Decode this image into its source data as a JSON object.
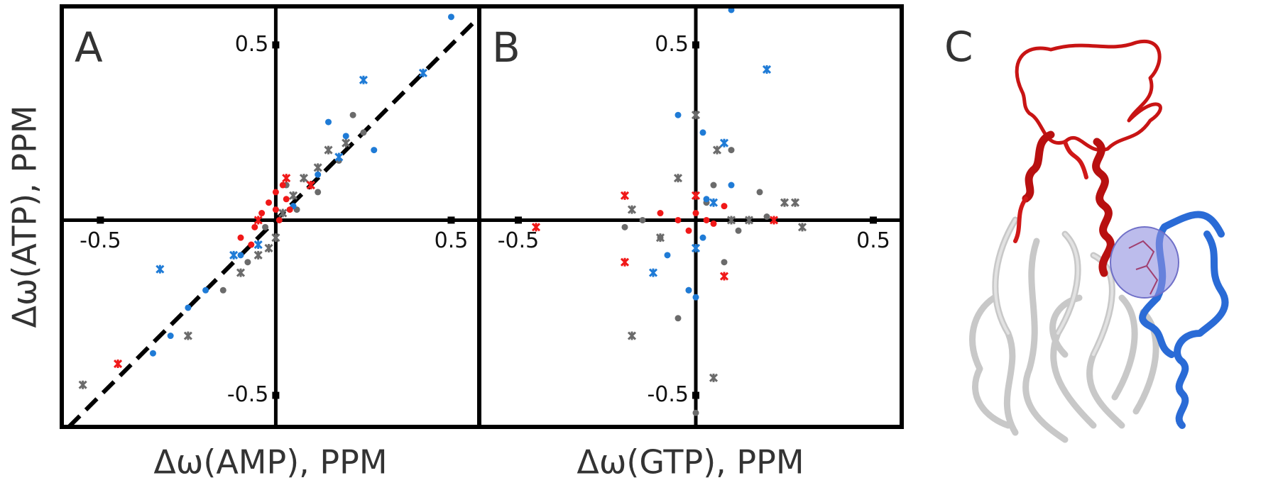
{
  "chart_data": [
    {
      "type": "scatter",
      "label": "A",
      "x_label": "Δω(AMP), PPM",
      "y_label": "Δω(ATP), PPM",
      "xlim": [
        -0.61,
        0.58
      ],
      "ylim": [
        -0.59,
        0.61
      ],
      "xticks": [
        -0.5,
        0.5
      ],
      "yticks": [
        -0.5,
        0.5
      ],
      "diagonal_line": true,
      "series": [
        {
          "color": "#6b6b6b",
          "marker": "x",
          "x": [
            0.05,
            0.08,
            0.12,
            0.2,
            0.1,
            -0.02,
            -0.05,
            -0.1,
            -0.25,
            -0.55,
            0.0,
            0.15,
            0.02
          ],
          "values": [
            0.07,
            0.12,
            0.15,
            0.22,
            0.1,
            -0.08,
            -0.1,
            -0.15,
            -0.33,
            -0.47,
            -0.05,
            0.2,
            0.02
          ]
        },
        {
          "color": "#6b6b6b",
          "marker": "dot",
          "x": [
            0.22,
            0.25,
            0.18,
            0.06,
            -0.03,
            -0.08,
            -0.15,
            0.12,
            0.03
          ],
          "values": [
            0.3,
            0.25,
            0.17,
            0.03,
            -0.02,
            -0.12,
            -0.2,
            0.08,
            0.1
          ]
        },
        {
          "color": "#1f7bd6",
          "marker": "dot",
          "x": [
            0.15,
            0.28,
            0.2,
            -0.2,
            -0.3,
            -0.25,
            0.5,
            -0.1,
            0.12,
            -0.35,
            0.05
          ],
          "values": [
            0.28,
            0.2,
            0.24,
            -0.2,
            -0.33,
            -0.25,
            0.58,
            -0.1,
            0.13,
            -0.38,
            0.04
          ]
        },
        {
          "color": "#1f7bd6",
          "marker": "x",
          "x": [
            -0.33,
            0.25,
            0.42,
            0.18,
            -0.05,
            -0.12
          ],
          "values": [
            -0.14,
            0.4,
            0.42,
            0.18,
            -0.07,
            -0.1
          ]
        },
        {
          "color": "#f01818",
          "marker": "dot",
          "x": [
            -0.02,
            0.0,
            0.02,
            -0.04,
            0.03,
            -0.06,
            0.01,
            -0.07,
            0.04,
            -0.1,
            0.0
          ],
          "values": [
            0.05,
            0.08,
            0.1,
            0.02,
            0.06,
            -0.02,
            0.0,
            -0.07,
            0.03,
            -0.05,
            0.03
          ]
        },
        {
          "color": "#f01818",
          "marker": "x",
          "x": [
            -0.45,
            0.1,
            -0.05,
            0.03
          ],
          "values": [
            -0.41,
            0.1,
            0.0,
            0.12
          ]
        }
      ]
    },
    {
      "type": "scatter",
      "label": "B",
      "x_label": "Δω(GTP), PPM",
      "xlim": [
        -0.61,
        0.58
      ],
      "ylim": [
        -0.59,
        0.61
      ],
      "xticks": [
        -0.5,
        0.5
      ],
      "yticks": [
        -0.5,
        0.5
      ],
      "diagonal_line": false,
      "series": [
        {
          "color": "#6b6b6b",
          "marker": "x",
          "x": [
            0.0,
            0.25,
            -0.18,
            0.1,
            -0.1,
            0.3,
            -0.18,
            0.05,
            0.28,
            0.15,
            0.06,
            -0.05
          ],
          "values": [
            0.3,
            0.05,
            0.03,
            0.0,
            -0.05,
            -0.02,
            -0.33,
            -0.45,
            0.05,
            0.0,
            0.2,
            0.12
          ]
        },
        {
          "color": "#6b6b6b",
          "marker": "dot",
          "x": [
            0.1,
            -0.1,
            0.05,
            -0.02,
            -0.15,
            0.12,
            0.2,
            0.0,
            -0.05,
            0.08,
            0.03,
            -0.2,
            0.18
          ],
          "values": [
            0.2,
            -0.05,
            0.1,
            -0.2,
            0.0,
            -0.03,
            0.01,
            -0.55,
            -0.28,
            -0.12,
            0.05,
            -0.02,
            0.08
          ]
        },
        {
          "color": "#1f7bd6",
          "marker": "dot",
          "x": [
            -0.05,
            0.02,
            -0.02,
            0.0,
            0.03,
            -0.08,
            0.1,
            0.02,
            0.1
          ],
          "values": [
            0.3,
            0.25,
            -0.2,
            -0.22,
            0.06,
            -0.1,
            0.1,
            -0.05,
            0.6
          ]
        },
        {
          "color": "#1f7bd6",
          "marker": "x",
          "x": [
            0.2,
            0.08,
            -0.12,
            0.0,
            0.05
          ],
          "values": [
            0.43,
            0.22,
            -0.15,
            -0.08,
            0.05
          ]
        },
        {
          "color": "#f01818",
          "marker": "dot",
          "x": [
            -0.05,
            0.0,
            0.03,
            0.08,
            -0.02,
            0.05,
            -0.1
          ],
          "values": [
            0.0,
            0.02,
            0.0,
            0.04,
            -0.03,
            -0.01,
            0.02
          ]
        },
        {
          "color": "#f01818",
          "marker": "x",
          "x": [
            -0.2,
            -0.45,
            -0.2,
            0.22,
            0.08,
            0.0
          ],
          "values": [
            0.07,
            -0.02,
            -0.12,
            0.0,
            -0.16,
            0.07
          ]
        }
      ]
    }
  ],
  "image_panel": {
    "label": "C"
  }
}
